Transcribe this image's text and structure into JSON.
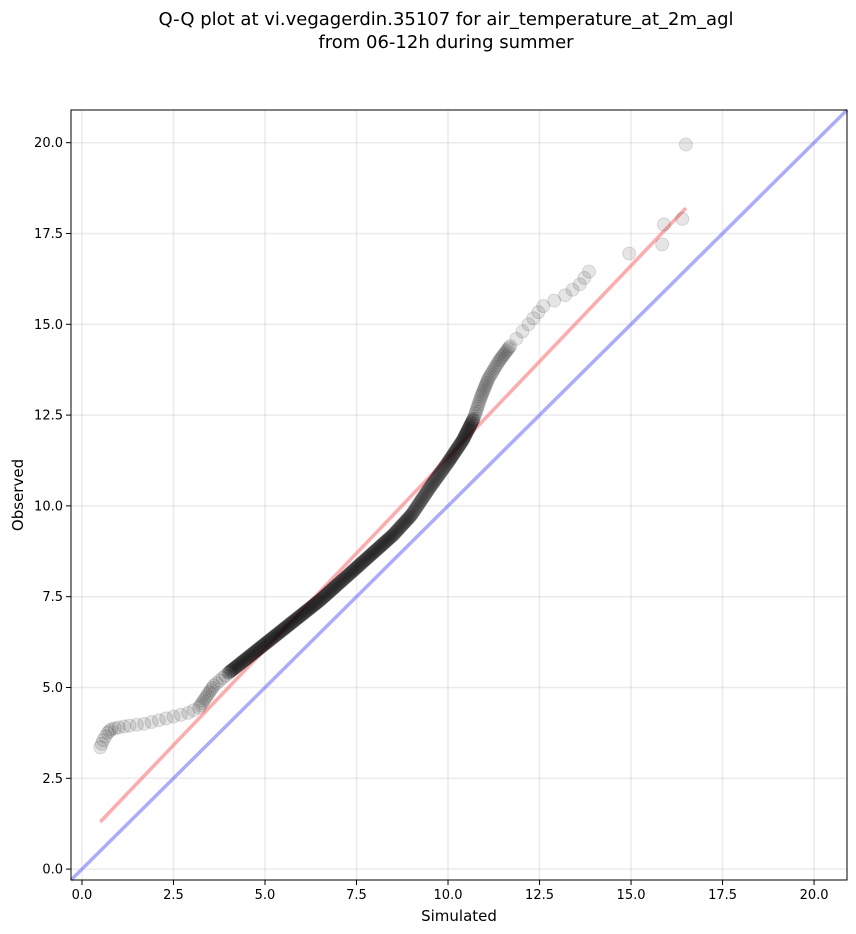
{
  "chart_data": {
    "type": "scatter",
    "title_lines": [
      "Q-Q plot at vi.vegagerdin.35107 for air_temperature_at_2m_agl",
      "from 06-12h during summer"
    ],
    "xlabel": "Simulated",
    "ylabel": "Observed",
    "xlim": [
      -0.3,
      20.9
    ],
    "ylim": [
      -0.3,
      20.9
    ],
    "xticks": [
      0.0,
      2.5,
      5.0,
      7.5,
      10.0,
      12.5,
      15.0,
      17.5,
      20.0
    ],
    "yticks": [
      0.0,
      2.5,
      5.0,
      7.5,
      10.0,
      12.5,
      15.0,
      17.5,
      20.0
    ],
    "xtick_labels": [
      "0.0",
      "2.5",
      "5.0",
      "7.5",
      "10.0",
      "12.5",
      "15.0",
      "17.5",
      "20.0"
    ],
    "ytick_labels": [
      "0.0",
      "2.5",
      "5.0",
      "7.5",
      "10.0",
      "12.5",
      "15.0",
      "17.5",
      "20.0"
    ],
    "grid": true,
    "colors": {
      "points": "#000000",
      "fit_line": "#ff6666",
      "identity_line": "#6666ff"
    },
    "fit_line": {
      "x": [
        0.5,
        16.5
      ],
      "y": [
        1.3,
        18.2
      ]
    },
    "identity_line": {
      "x": [
        -0.3,
        20.9
      ],
      "y": [
        -0.3,
        20.9
      ]
    },
    "quantile_path": [
      [
        0.5,
        3.35
      ],
      [
        0.58,
        3.55
      ],
      [
        0.7,
        3.75
      ],
      [
        0.8,
        3.85
      ],
      [
        1.0,
        3.9
      ],
      [
        1.3,
        3.95
      ],
      [
        1.7,
        4.0
      ],
      [
        2.1,
        4.1
      ],
      [
        2.5,
        4.2
      ],
      [
        2.9,
        4.3
      ],
      [
        3.2,
        4.45
      ],
      [
        3.4,
        4.75
      ],
      [
        3.6,
        5.05
      ],
      [
        4.0,
        5.4
      ],
      [
        4.5,
        5.8
      ],
      [
        5.0,
        6.2
      ],
      [
        5.5,
        6.6
      ],
      [
        6.0,
        7.0
      ],
      [
        6.5,
        7.4
      ],
      [
        7.0,
        7.85
      ],
      [
        7.5,
        8.3
      ],
      [
        8.0,
        8.75
      ],
      [
        8.5,
        9.2
      ],
      [
        9.0,
        9.75
      ],
      [
        9.5,
        10.5
      ],
      [
        10.0,
        11.2
      ],
      [
        10.4,
        11.8
      ],
      [
        10.7,
        12.4
      ],
      [
        10.9,
        13.0
      ],
      [
        11.1,
        13.5
      ],
      [
        11.4,
        14.0
      ],
      [
        11.7,
        14.4
      ],
      [
        12.2,
        15.0
      ],
      [
        12.6,
        15.5
      ],
      [
        13.2,
        15.8
      ],
      [
        13.6,
        16.1
      ],
      [
        13.85,
        16.45
      ]
    ],
    "outliers": [
      {
        "x": 14.95,
        "y": 16.95
      },
      {
        "x": 15.85,
        "y": 17.2
      },
      {
        "x": 15.9,
        "y": 17.75
      },
      {
        "x": 16.4,
        "y": 17.9
      },
      {
        "x": 16.5,
        "y": 19.95
      }
    ]
  }
}
